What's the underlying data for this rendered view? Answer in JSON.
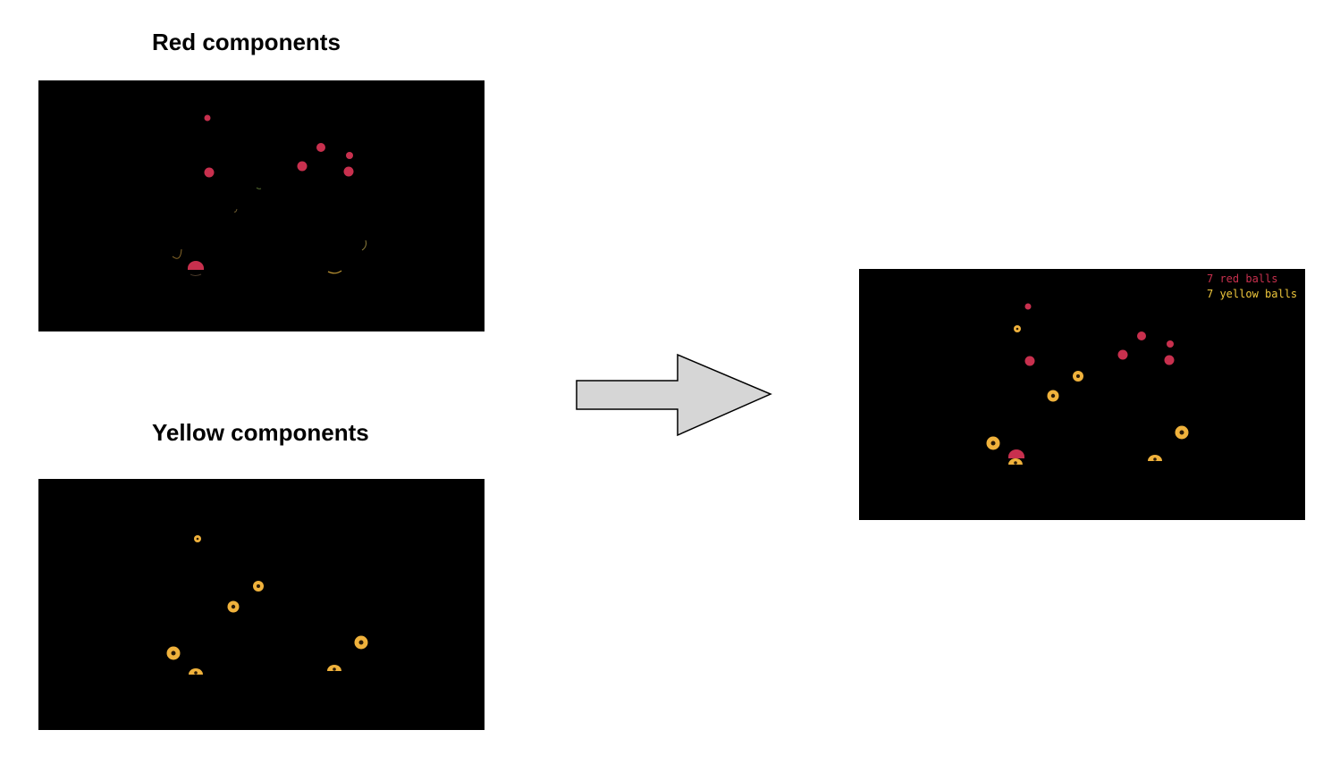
{
  "panels": {
    "red_title": "Red components",
    "yellow_title": "Yellow components"
  },
  "result": {
    "red_count_text": "7 red balls",
    "yellow_count_text": "7 yellow balls"
  },
  "colors": {
    "red_ball": "#c8304e",
    "yellow_ball": "#f0b23c",
    "ball_hole": "#2a1a08",
    "red_label": "#c8304e",
    "yellow_label": "#f0c83c",
    "arrow_fill": "#d6d6d6",
    "arrow_stroke": "#000000"
  },
  "icons": {
    "arrow": "right-arrow-icon"
  }
}
